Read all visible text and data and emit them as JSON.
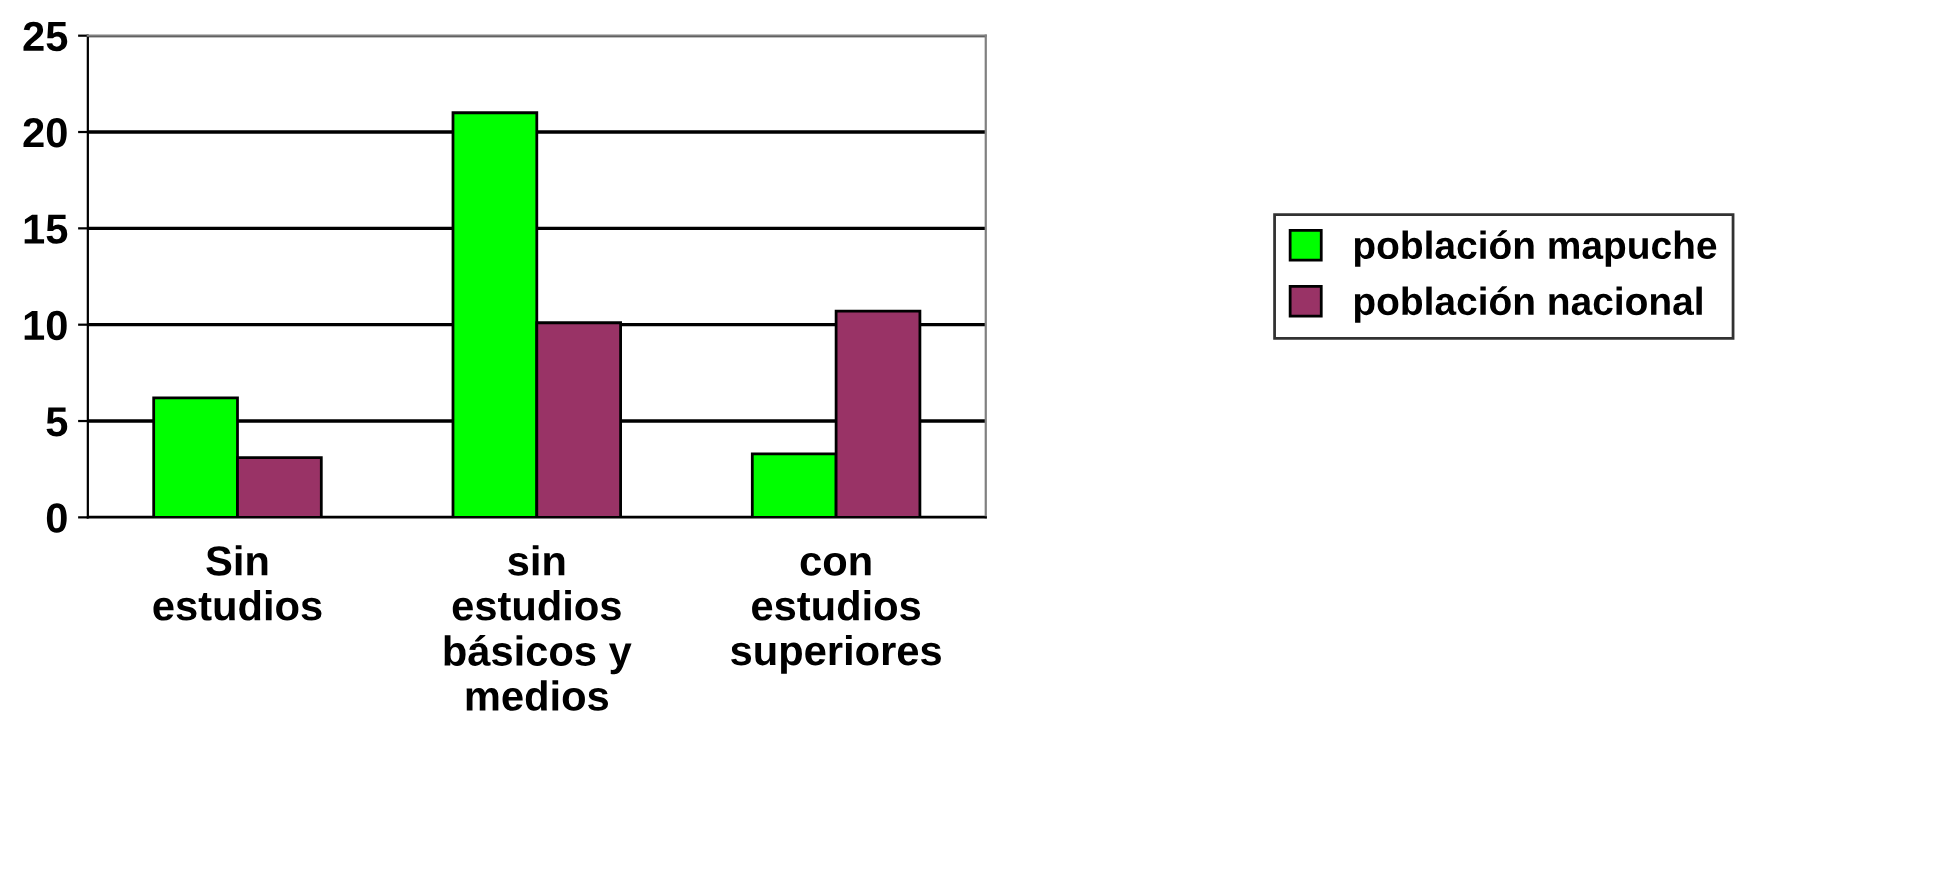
{
  "chart_data": {
    "type": "bar",
    "categories": [
      "Sin\nestudios",
      "sin\nestudios\nbásicos y\nmedios",
      "con\nestudios\nsuperiores"
    ],
    "series": [
      {
        "name": "población mapuche",
        "color": "#00ff00",
        "values": [
          6.2,
          21,
          3.3
        ]
      },
      {
        "name": "población nacional",
        "color": "#993366",
        "values": [
          3.1,
          10.1,
          10.7
        ]
      }
    ],
    "ylim": [
      0,
      25
    ],
    "yticks": [
      0,
      5,
      10,
      15,
      20,
      25
    ],
    "grid": "y",
    "legend": "right"
  }
}
